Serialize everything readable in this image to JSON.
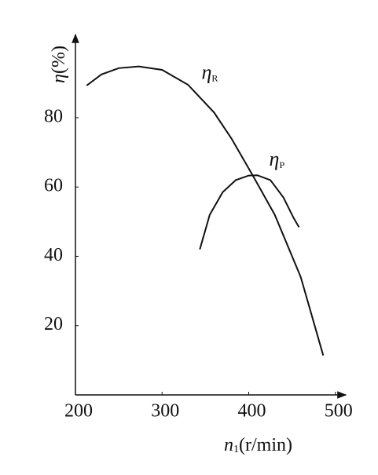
{
  "chart_data": {
    "type": "line",
    "x_label": {
      "main": "n",
      "sub": "1",
      "rest": "(r/min)"
    },
    "y_label": {
      "main": "η",
      "rest": "(%)"
    },
    "xlim": [
      200,
      512
    ],
    "ylim": [
      0,
      104
    ],
    "xticks": [
      200,
      300,
      400,
      500
    ],
    "yticks": [
      20,
      40,
      60,
      80
    ],
    "grid": false,
    "series": [
      {
        "label": "η",
        "label_sub": "R",
        "color": "#111111",
        "x": [
          213,
          230,
          250,
          273,
          300,
          330,
          360,
          380,
          405,
          430,
          460,
          486
        ],
        "values": [
          89.3,
          92.5,
          94.3,
          94.8,
          93.8,
          89.5,
          81.5,
          74,
          63.2,
          52,
          34,
          11.4
        ]
      },
      {
        "label": "η",
        "label_sub": "P",
        "color": "#111111",
        "x": [
          343.6,
          355,
          370,
          385,
          400,
          410,
          425,
          440,
          452,
          458
        ],
        "values": [
          42,
          52,
          58.5,
          62,
          63.3,
          63.4,
          62,
          57,
          51,
          48.4
        ]
      }
    ]
  }
}
